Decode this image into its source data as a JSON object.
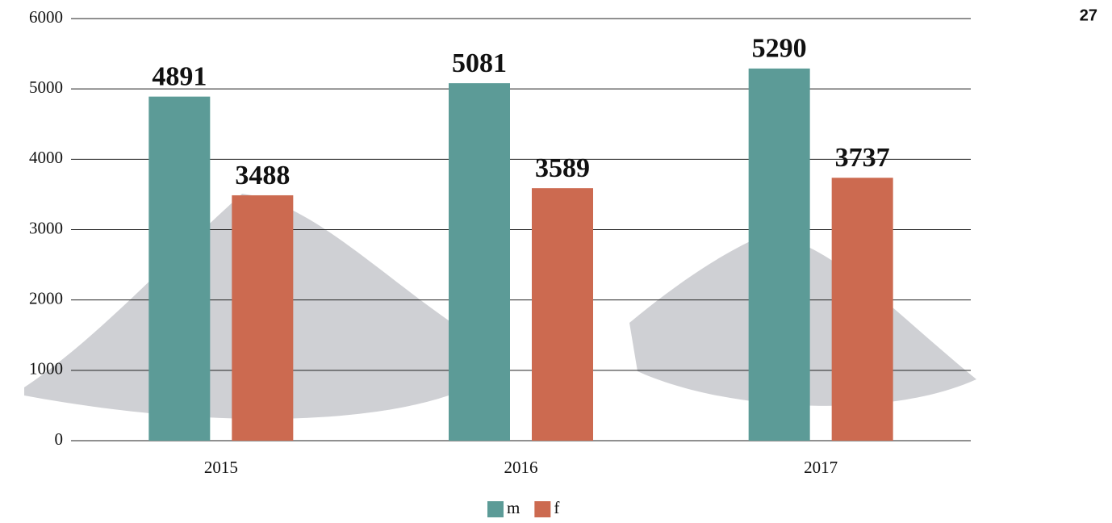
{
  "page_number": "27",
  "chart_data": {
    "type": "bar",
    "categories": [
      "2015",
      "2016",
      "2017"
    ],
    "series": [
      {
        "name": "m",
        "color": "#5c9b97",
        "values": [
          4891,
          5081,
          5290
        ]
      },
      {
        "name": "f",
        "color": "#cc6a50",
        "values": [
          3488,
          3589,
          3737
        ]
      }
    ],
    "ylim": [
      0,
      6000
    ],
    "yticks": [
      0,
      1000,
      2000,
      3000,
      4000,
      5000,
      6000
    ],
    "grid": true,
    "legend": "bottom"
  }
}
